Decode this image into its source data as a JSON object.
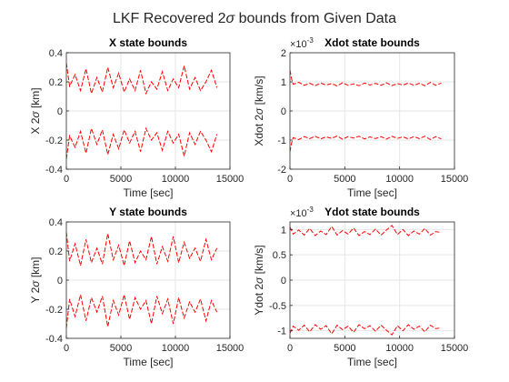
{
  "figure": {
    "title_prefix": "LKF Recovered 2",
    "title_sigma": "σ",
    "title_suffix": " bounds from Given Data"
  },
  "chart_data": [
    {
      "type": "line",
      "title": "X state bounds",
      "xlabel": "Time [sec]",
      "ylabel_prefix": "X 2",
      "ylabel_sigma": "σ",
      "ylabel_suffix": " [km]",
      "xlim": [
        0,
        15000
      ],
      "ylim": [
        -0.4,
        0.4
      ],
      "xticks": [
        0,
        5000,
        10000,
        15000
      ],
      "yticks": [
        -0.4,
        -0.2,
        0,
        0.2,
        0.4
      ],
      "ytick_labels": [
        "-0.4",
        "-0.2",
        "0",
        "0.2",
        "0.4"
      ],
      "exponent_label": "",
      "grid": true,
      "color": "#ff0000",
      "series": [
        {
          "x": [
            0,
            300,
            800,
            1300,
            1800,
            2300,
            2800,
            3300,
            3800,
            4300,
            4800,
            5300,
            5800,
            6300,
            6800,
            7300,
            7800,
            8300,
            8800,
            9300,
            9800,
            10300,
            10800,
            11300,
            11800,
            12300,
            12800,
            13300,
            13800
          ],
          "y": [
            0.33,
            0.17,
            0.25,
            0.14,
            0.29,
            0.12,
            0.23,
            0.13,
            0.3,
            0.16,
            0.26,
            0.13,
            0.22,
            0.14,
            0.28,
            0.12,
            0.2,
            0.15,
            0.27,
            0.14,
            0.22,
            0.16,
            0.31,
            0.15,
            0.23,
            0.14,
            0.2,
            0.28,
            0.16
          ]
        },
        {
          "x": [
            0,
            300,
            800,
            1300,
            1800,
            2300,
            2800,
            3300,
            3800,
            4300,
            4800,
            5300,
            5800,
            6300,
            6800,
            7300,
            7800,
            8300,
            8800,
            9300,
            9800,
            10300,
            10800,
            11300,
            11800,
            12300,
            12800,
            13300,
            13800
          ],
          "y": [
            -0.33,
            -0.17,
            -0.25,
            -0.14,
            -0.29,
            -0.12,
            -0.23,
            -0.13,
            -0.3,
            -0.16,
            -0.26,
            -0.13,
            -0.22,
            -0.14,
            -0.28,
            -0.12,
            -0.2,
            -0.15,
            -0.27,
            -0.14,
            -0.22,
            -0.16,
            -0.31,
            -0.15,
            -0.23,
            -0.14,
            -0.2,
            -0.28,
            -0.16
          ]
        }
      ]
    },
    {
      "type": "line",
      "title": "Xdot state bounds",
      "xlabel": "Time [sec]",
      "ylabel_prefix": "Xdot 2",
      "ylabel_sigma": "σ",
      "ylabel_suffix": " [km/s]",
      "xlim": [
        0,
        15000
      ],
      "ylim": [
        -0.002,
        0.002
      ],
      "xticks": [
        0,
        5000,
        10000,
        15000
      ],
      "yticks": [
        -0.002,
        -0.001,
        0,
        0.001,
        0.002
      ],
      "ytick_labels": [
        "-2",
        "-1",
        "0",
        "1",
        "2"
      ],
      "exponent_label": "×10",
      "exponent_power": "-3",
      "grid": true,
      "color": "#ff0000",
      "series": [
        {
          "x": [
            0,
            150,
            300,
            800,
            1300,
            1800,
            2300,
            2800,
            3300,
            3800,
            4300,
            4800,
            5300,
            5800,
            6300,
            6800,
            7300,
            7800,
            8300,
            8800,
            9300,
            9800,
            10300,
            10800,
            11300,
            11800,
            12300,
            12800,
            13300,
            13800
          ],
          "y": [
            0.0014,
            0.0011,
            0.00092,
            0.00098,
            0.00088,
            0.00095,
            0.00087,
            0.00096,
            0.00089,
            0.00094,
            0.00086,
            0.00097,
            0.00088,
            0.00093,
            0.00087,
            0.00096,
            0.00089,
            0.00095,
            0.00088,
            0.00097,
            0.00087,
            0.00094,
            0.00089,
            0.00096,
            0.00088,
            0.00095,
            0.00087,
            0.00098,
            0.00088,
            0.00096
          ]
        },
        {
          "x": [
            0,
            150,
            300,
            800,
            1300,
            1800,
            2300,
            2800,
            3300,
            3800,
            4300,
            4800,
            5300,
            5800,
            6300,
            6800,
            7300,
            7800,
            8300,
            8800,
            9300,
            9800,
            10300,
            10800,
            11300,
            11800,
            12300,
            12800,
            13300,
            13800
          ],
          "y": [
            -0.0014,
            -0.0011,
            -0.00092,
            -0.00098,
            -0.00088,
            -0.00095,
            -0.00087,
            -0.00096,
            -0.00089,
            -0.00094,
            -0.00086,
            -0.00097,
            -0.00088,
            -0.00093,
            -0.00087,
            -0.00096,
            -0.00089,
            -0.00095,
            -0.00088,
            -0.00097,
            -0.00087,
            -0.00094,
            -0.00089,
            -0.00096,
            -0.00088,
            -0.00095,
            -0.00087,
            -0.00098,
            -0.00088,
            -0.00096
          ]
        }
      ]
    },
    {
      "type": "line",
      "title": "Y state bounds",
      "xlabel": "Time [sec]",
      "ylabel_prefix": "Y 2",
      "ylabel_sigma": "σ",
      "ylabel_suffix": " [km]",
      "xlim": [
        0,
        15000
      ],
      "ylim": [
        -0.4,
        0.4
      ],
      "xticks": [
        0,
        5000,
        10000,
        15000
      ],
      "yticks": [
        -0.4,
        -0.2,
        0,
        0.2,
        0.4
      ],
      "ytick_labels": [
        "-0.4",
        "-0.2",
        "0",
        "0.2",
        "0.4"
      ],
      "exponent_label": "",
      "grid": true,
      "color": "#ff0000",
      "series": [
        {
          "x": [
            0,
            300,
            800,
            1300,
            1800,
            2300,
            2800,
            3300,
            3800,
            4300,
            4800,
            5300,
            5800,
            6300,
            6800,
            7300,
            7800,
            8300,
            8800,
            9300,
            9800,
            10300,
            10800,
            11300,
            11800,
            12300,
            12800,
            13300,
            13800
          ],
          "y": [
            0.33,
            0.13,
            0.25,
            0.1,
            0.28,
            0.12,
            0.22,
            0.11,
            0.32,
            0.14,
            0.24,
            0.1,
            0.27,
            0.12,
            0.2,
            0.14,
            0.3,
            0.11,
            0.23,
            0.13,
            0.3,
            0.12,
            0.26,
            0.15,
            0.22,
            0.13,
            0.28,
            0.14,
            0.22
          ]
        },
        {
          "x": [
            0,
            300,
            800,
            1300,
            1800,
            2300,
            2800,
            3300,
            3800,
            4300,
            4800,
            5300,
            5800,
            6300,
            6800,
            7300,
            7800,
            8300,
            8800,
            9300,
            9800,
            10300,
            10800,
            11300,
            11800,
            12300,
            12800,
            13300,
            13800
          ],
          "y": [
            -0.33,
            -0.13,
            -0.25,
            -0.1,
            -0.28,
            -0.12,
            -0.22,
            -0.11,
            -0.32,
            -0.14,
            -0.24,
            -0.1,
            -0.27,
            -0.12,
            -0.2,
            -0.14,
            -0.3,
            -0.11,
            -0.23,
            -0.13,
            -0.3,
            -0.12,
            -0.26,
            -0.15,
            -0.22,
            -0.13,
            -0.28,
            -0.14,
            -0.22
          ]
        }
      ]
    },
    {
      "type": "line",
      "title": "Ydot state bounds",
      "xlabel": "Time [sec]",
      "ylabel_prefix": "Ydot 2",
      "ylabel_sigma": "σ",
      "ylabel_suffix": " [km/s]",
      "xlim": [
        0,
        15000
      ],
      "ylim": [
        -0.00115,
        0.00115
      ],
      "xticks": [
        0,
        5000,
        10000,
        15000
      ],
      "yticks": [
        -0.001,
        -0.0005,
        0,
        0.0005,
        0.001
      ],
      "ytick_labels": [
        "-1",
        "-0.5",
        "0",
        "0.5",
        "1"
      ],
      "exponent_label": "×10",
      "exponent_power": "-3",
      "grid": true,
      "color": "#ff0000",
      "series": [
        {
          "x": [
            0,
            300,
            800,
            1300,
            1800,
            2300,
            2800,
            3300,
            3800,
            4300,
            4800,
            5300,
            5800,
            6300,
            6800,
            7300,
            7800,
            8300,
            8800,
            9300,
            9800,
            10300,
            10800,
            11300,
            11800,
            12300,
            12800,
            13300,
            13800
          ],
          "y": [
            0.00105,
            0.00091,
            0.00099,
            0.00089,
            0.00102,
            0.00088,
            0.00097,
            0.0009,
            0.00106,
            0.00089,
            0.00098,
            0.00091,
            0.00103,
            0.00088,
            0.00096,
            0.0009,
            0.00101,
            0.00089,
            0.00099,
            0.00108,
            0.0009,
            0.001,
            0.00088,
            0.00097,
            0.00091,
            0.00102,
            0.00089,
            0.00096,
            0.00094
          ]
        },
        {
          "x": [
            0,
            300,
            800,
            1300,
            1800,
            2300,
            2800,
            3300,
            3800,
            4300,
            4800,
            5300,
            5800,
            6300,
            6800,
            7300,
            7800,
            8300,
            8800,
            9300,
            9800,
            10300,
            10800,
            11300,
            11800,
            12300,
            12800,
            13300,
            13800
          ],
          "y": [
            -0.00105,
            -0.00091,
            -0.00099,
            -0.00089,
            -0.00102,
            -0.00088,
            -0.00097,
            -0.0009,
            -0.00106,
            -0.00089,
            -0.00098,
            -0.00091,
            -0.00103,
            -0.00088,
            -0.00096,
            -0.0009,
            -0.00101,
            -0.00089,
            -0.00099,
            -0.00108,
            -0.0009,
            -0.001,
            -0.00088,
            -0.00097,
            -0.00091,
            -0.00102,
            -0.00089,
            -0.00096,
            -0.00094
          ]
        }
      ]
    }
  ]
}
